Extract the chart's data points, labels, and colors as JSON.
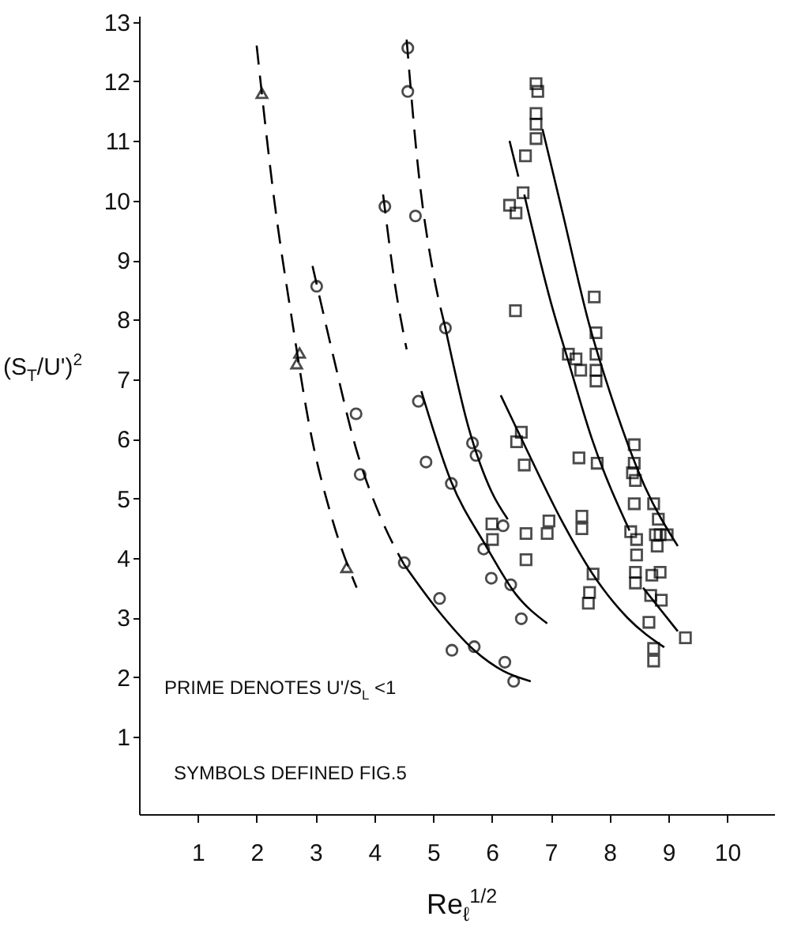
{
  "chart_data": {
    "type": "scatter",
    "xlabel": "Re$_{ℓ}$$^{1/2}$",
    "ylabel": "(S$_{T}$/U')$^{2}$",
    "annotations": [
      "PRIME DENOTES U'/S$_{L}$ <1",
      "SYMBOLS DEFINED FIG.5"
    ],
    "xlim": [
      0,
      10.8
    ],
    "ylim": [
      -0.3,
      13.1
    ],
    "xticks": [
      1,
      2,
      3,
      4,
      5,
      6,
      7,
      8,
      9,
      10
    ],
    "yticks": [
      1,
      2,
      3,
      4,
      5,
      6,
      7,
      8,
      9,
      10,
      11,
      12,
      13
    ],
    "grid": false,
    "series": [
      {
        "marker": "triangle",
        "color": "#000000",
        "x": [
          2.09,
          2.73,
          2.68,
          3.53
        ],
        "values": [
          11.8,
          7.44,
          7.26,
          3.84
        ]
      },
      {
        "marker": "circle",
        "color": "#000000",
        "x": [
          3.02,
          3.69,
          3.76,
          4.51,
          5.11,
          5.32,
          5.7,
          6.22,
          6.37
        ],
        "values": [
          8.56,
          6.42,
          5.4,
          3.92,
          3.32,
          2.45,
          2.51,
          2.25,
          1.93
        ]
      },
      {
        "marker": "circle",
        "color": "#000000",
        "x": [
          4.18,
          4.75,
          4.88,
          5.31,
          5.86,
          5.99,
          6.32,
          6.5
        ],
        "values": [
          9.9,
          6.63,
          5.61,
          5.25,
          4.15,
          3.66,
          3.55,
          2.98
        ]
      },
      {
        "marker": "circle",
        "color": "#000000",
        "x": [
          4.57,
          4.57,
          4.7,
          5.21,
          5.67,
          5.73,
          6.19
        ],
        "values": [
          12.56,
          11.83,
          9.74,
          7.86,
          5.93,
          5.72,
          4.54
        ]
      },
      {
        "marker": "square",
        "color": "#000000",
        "x": [
          6.5,
          6.42,
          6.55,
          6.0,
          6.01,
          6.58,
          6.58,
          6.97,
          6.94,
          7.53,
          7.53,
          7.72,
          7.66,
          7.64,
          8.67,
          8.75,
          8.75
        ],
        "values": [
          6.11,
          5.95,
          5.56,
          4.57,
          4.31,
          4.41,
          3.97,
          4.62,
          4.41,
          4.7,
          4.49,
          3.73,
          3.42,
          3.24,
          2.92,
          2.48,
          2.27
        ]
      },
      {
        "marker": "square",
        "color": "#000000",
        "x": [
          6.57,
          6.53,
          6.3,
          6.41,
          6.4,
          7.3,
          7.43,
          7.51,
          7.48,
          8.36,
          8.46,
          8.46,
          8.44,
          8.44,
          8.72,
          8.86,
          8.7,
          8.88,
          9.29
        ],
        "values": [
          10.75,
          10.13,
          9.92,
          9.79,
          8.15,
          7.42,
          7.34,
          7.15,
          5.68,
          4.44,
          4.31,
          4.05,
          3.76,
          3.58,
          3.71,
          3.76,
          3.37,
          3.29,
          2.66
        ]
      },
      {
        "marker": "square",
        "color": "#000000",
        "x": [
          6.75,
          6.78,
          6.75,
          6.75,
          6.75,
          7.74,
          7.77,
          7.77,
          7.77,
          7.77,
          7.79,
          8.42,
          8.42,
          8.39,
          8.44,
          8.42,
          8.75,
          8.83,
          8.78,
          8.86,
          8.98,
          8.81
        ],
        "values": [
          11.96,
          11.83,
          11.46,
          11.28,
          11.04,
          8.38,
          7.78,
          7.42,
          7.15,
          6.97,
          5.59,
          5.9,
          5.59,
          5.43,
          5.3,
          4.91,
          4.91,
          4.65,
          4.39,
          4.39,
          4.39,
          4.2
        ]
      },
      {
        "type": "line",
        "line_style": "dashed",
        "color": "#000000",
        "x": [
          2.0,
          2.3,
          2.6,
          2.9,
          3.3,
          3.7
        ],
        "values": [
          12.6,
          10.0,
          8.0,
          6.2,
          4.6,
          3.5
        ]
      },
      {
        "type": "line",
        "line_style": "dashed",
        "color": "#000000",
        "x": [
          2.95,
          3.3,
          3.7,
          4.1,
          4.5
        ],
        "values": [
          8.9,
          7.4,
          5.8,
          4.7,
          3.9
        ]
      },
      {
        "type": "line",
        "line_style": "solid",
        "color": "#000000",
        "x": [
          4.5,
          5.1,
          5.7,
          6.2,
          6.66
        ],
        "values": [
          3.9,
          3.1,
          2.45,
          2.1,
          1.93
        ]
      },
      {
        "type": "line",
        "line_style": "dashed",
        "color": "#000000",
        "x": [
          4.15,
          4.35,
          4.55
        ],
        "values": [
          10.1,
          8.6,
          7.5
        ]
      },
      {
        "type": "line",
        "line_style": "solid",
        "color": "#000000",
        "x": [
          4.8,
          5.3,
          5.9,
          6.4,
          6.94
        ],
        "values": [
          6.8,
          5.3,
          4.2,
          3.4,
          2.9
        ]
      },
      {
        "type": "line",
        "line_style": "dashed",
        "color": "#000000",
        "x": [
          4.55,
          4.75,
          5.0,
          5.2
        ],
        "values": [
          12.7,
          10.5,
          8.8,
          7.9
        ]
      },
      {
        "type": "line",
        "line_style": "solid",
        "color": "#000000",
        "x": [
          5.2,
          5.6,
          6.0,
          6.27
        ],
        "values": [
          7.9,
          6.2,
          5.1,
          4.65
        ]
      },
      {
        "type": "line",
        "line_style": "solid",
        "color": "#000000",
        "x": [
          6.15,
          6.6,
          7.2,
          7.7,
          8.3,
          8.93
        ],
        "values": [
          6.73,
          5.8,
          4.6,
          3.75,
          3.0,
          2.5
        ]
      },
      {
        "type": "line",
        "line_style": "solid",
        "color": "#000000",
        "x": [
          6.3,
          6.45
        ],
        "values": [
          11.0,
          10.4
        ]
      },
      {
        "type": "line",
        "line_style": "solid",
        "color": "#000000",
        "x": [
          6.55,
          7.0,
          7.3,
          7.7,
          8.34
        ],
        "values": [
          10.1,
          8.3,
          7.3,
          6.0,
          4.46
        ]
      },
      {
        "type": "line",
        "line_style": "solid",
        "color": "#000000",
        "x": [
          6.86,
          7.2,
          7.66,
          8.0,
          8.6,
          9.16
        ],
        "values": [
          11.2,
          9.8,
          7.9,
          6.8,
          5.2,
          4.2
        ]
      },
      {
        "type": "line",
        "line_style": "solid",
        "color": "#000000",
        "x": [
          8.57,
          9.16
        ],
        "values": [
          3.5,
          2.77
        ]
      }
    ]
  }
}
